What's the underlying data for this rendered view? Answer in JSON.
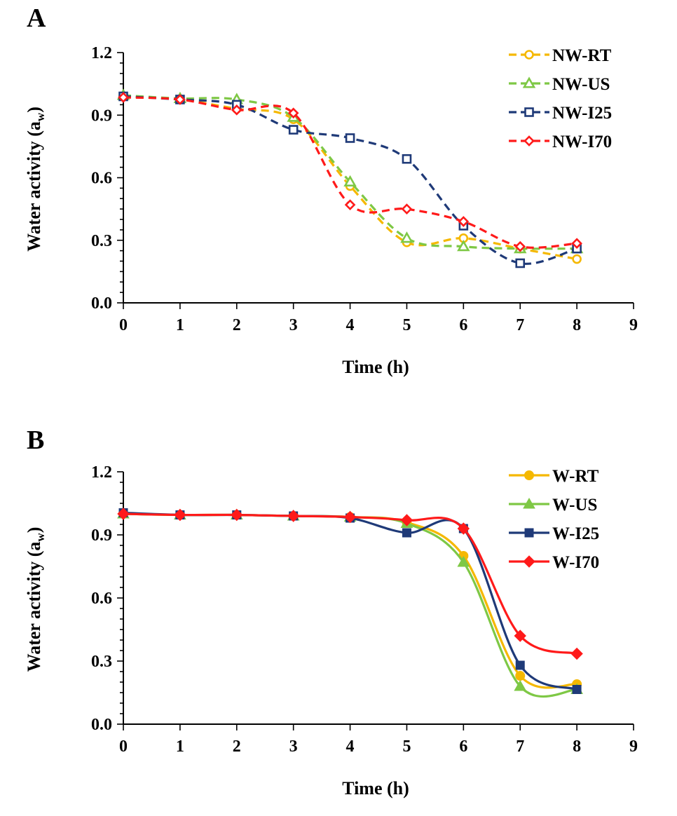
{
  "chart_data": [
    {
      "panel_label": "A",
      "type": "line",
      "xlabel": "Time (h)",
      "ylabel_main": "Water activity (a",
      "ylabel_sub": "w",
      "ylabel_close": ")",
      "xlim": [
        0,
        9
      ],
      "ylim": [
        0,
        1.2
      ],
      "xticks": [
        "0",
        "1",
        "2",
        "3",
        "4",
        "5",
        "6",
        "7",
        "8",
        "9"
      ],
      "yticks": [
        "0.0",
        "0.3",
        "0.6",
        "0.9",
        "1.2"
      ],
      "x": [
        0,
        1,
        2,
        3,
        4,
        5,
        6,
        7,
        8
      ],
      "series": [
        {
          "name": "NW-RT",
          "color": "#f5b800",
          "marker": "circle-open",
          "dashed": true,
          "values": [
            0.99,
            0.975,
            0.93,
            0.88,
            0.56,
            0.29,
            0.31,
            0.26,
            0.21
          ]
        },
        {
          "name": "NW-US",
          "color": "#7ec845",
          "marker": "triangle-open",
          "dashed": true,
          "values": [
            0.995,
            0.98,
            0.975,
            0.89,
            0.58,
            0.31,
            0.27,
            0.26,
            0.26
          ]
        },
        {
          "name": "NW-I25",
          "color": "#1f3a78",
          "marker": "square-open",
          "dashed": true,
          "values": [
            0.99,
            0.975,
            0.95,
            0.83,
            0.79,
            0.69,
            0.37,
            0.19,
            0.26
          ]
        },
        {
          "name": "NW-I70",
          "color": "#ff1a1a",
          "marker": "diamond-open",
          "dashed": true,
          "values": [
            0.985,
            0.975,
            0.925,
            0.91,
            0.47,
            0.45,
            0.39,
            0.27,
            0.285
          ]
        }
      ]
    },
    {
      "panel_label": "B",
      "type": "line",
      "xlabel": "Time (h)",
      "ylabel_main": "Water activity (a",
      "ylabel_sub": "w",
      "ylabel_close": ")",
      "xlim": [
        0,
        9
      ],
      "ylim": [
        0,
        1.2
      ],
      "xticks": [
        "0",
        "1",
        "2",
        "3",
        "4",
        "5",
        "6",
        "7",
        "8",
        "9"
      ],
      "yticks": [
        "0.0",
        "0.3",
        "0.6",
        "0.9",
        "1.2"
      ],
      "x": [
        0,
        1,
        2,
        3,
        4,
        5,
        6,
        7,
        8
      ],
      "series": [
        {
          "name": "W-RT",
          "color": "#f5b800",
          "marker": "circle",
          "dashed": false,
          "values": [
            1.0,
            0.995,
            0.995,
            0.99,
            0.985,
            0.96,
            0.8,
            0.23,
            0.19
          ]
        },
        {
          "name": "W-US",
          "color": "#7ec845",
          "marker": "triangle",
          "dashed": false,
          "values": [
            1.0,
            0.995,
            0.995,
            0.99,
            0.985,
            0.955,
            0.77,
            0.18,
            0.165
          ]
        },
        {
          "name": "W-I25",
          "color": "#1f3a78",
          "marker": "square",
          "dashed": false,
          "values": [
            1.005,
            0.995,
            0.995,
            0.99,
            0.98,
            0.91,
            0.93,
            0.28,
            0.165
          ]
        },
        {
          "name": "W-I70",
          "color": "#ff1a1a",
          "marker": "diamond",
          "dashed": false,
          "values": [
            1.0,
            0.995,
            0.995,
            0.99,
            0.985,
            0.97,
            0.93,
            0.42,
            0.335
          ]
        }
      ]
    }
  ]
}
